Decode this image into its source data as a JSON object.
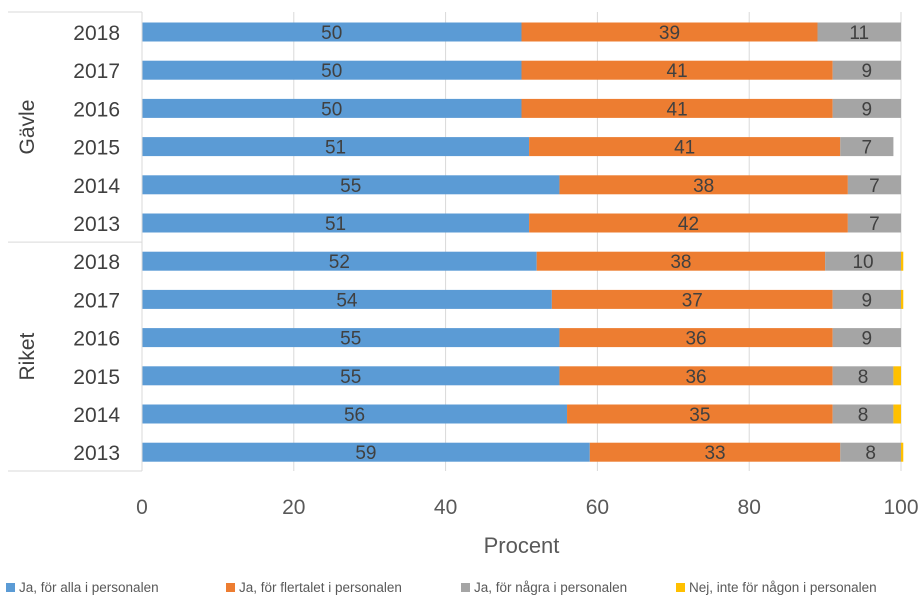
{
  "chart_data": {
    "type": "bar",
    "orientation": "horizontal",
    "stacked": true,
    "xlabel": "Procent",
    "xlim": [
      0,
      100
    ],
    "xticks": [
      "0",
      "20",
      "40",
      "60",
      "80",
      "100"
    ],
    "grid": true,
    "legend_position": "bottom",
    "groups": [
      {
        "label": "Gävle",
        "categories": [
          "2018",
          "2017",
          "2016",
          "2015",
          "2014",
          "2013"
        ]
      },
      {
        "label": "Riket",
        "categories": [
          "2018",
          "2017",
          "2016",
          "2015",
          "2014",
          "2013"
        ]
      }
    ],
    "series": [
      {
        "name": "Ja, för alla i personalen",
        "color": "#5B9BD5",
        "values": [
          50,
          50,
          50,
          51,
          55,
          51,
          52,
          54,
          55,
          55,
          56,
          59
        ],
        "labels": [
          "50",
          "50",
          "50",
          "51",
          "55",
          "51",
          "52",
          "54",
          "55",
          "55",
          "56",
          "59"
        ]
      },
      {
        "name": "Ja, för flertalet i personalen",
        "color": "#ED7D31",
        "values": [
          39,
          41,
          41,
          41,
          38,
          42,
          38,
          37,
          36,
          36,
          35,
          33
        ],
        "labels": [
          "39",
          "41",
          "41",
          "41",
          "38",
          "42",
          "38",
          "37",
          "36",
          "36",
          "35",
          "33"
        ]
      },
      {
        "name": "Ja, för några i personalen",
        "color": "#A5A5A5",
        "values": [
          11,
          9,
          9,
          7,
          7,
          7,
          10,
          9,
          9,
          8,
          8,
          8
        ],
        "labels": [
          "11",
          "9",
          "9",
          "7",
          "7",
          "7",
          "10",
          "9",
          "9",
          "8",
          "8",
          "8"
        ]
      },
      {
        "name": "Nej, inte för någon i personalen",
        "color": "#FFC000",
        "values": [
          0,
          0,
          0,
          0,
          0,
          0,
          0.3,
          0.3,
          0,
          1,
          1,
          0.3
        ],
        "labels": [
          "",
          "",
          "",
          "",
          "",
          "",
          "",
          "",
          "",
          "",
          "",
          ""
        ]
      }
    ]
  }
}
